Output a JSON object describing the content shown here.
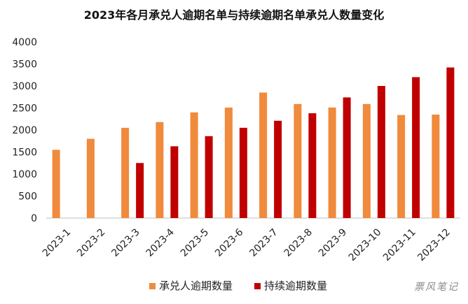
{
  "chart_data": {
    "type": "bar",
    "title": "2023年各月承兑人逾期名单与持续逾期名单承兑人数量变化",
    "categories": [
      "2023-1",
      "2023-2",
      "2023-3",
      "2023-4",
      "2023-5",
      "2023-6",
      "2023-7",
      "2023-8",
      "2023-9",
      "2023-10",
      "2023-11",
      "2023-12"
    ],
    "series": [
      {
        "name": "承兑人逾期数量",
        "color": "#F08A3C",
        "values": [
          1550,
          1800,
          2050,
          2180,
          2400,
          2510,
          2850,
          2590,
          2510,
          2590,
          2340,
          2350
        ]
      },
      {
        "name": "持续逾期数量",
        "color": "#C00000",
        "values": [
          null,
          null,
          1250,
          1630,
          1860,
          2050,
          2210,
          2380,
          2740,
          3000,
          3200,
          3420
        ]
      }
    ],
    "ylim": [
      0,
      4000
    ],
    "yticks": [
      0,
      500,
      1000,
      1500,
      2000,
      2500,
      3000,
      3500,
      4000
    ],
    "grid": false,
    "legend": "bottom"
  },
  "watermark": "票风笔记"
}
